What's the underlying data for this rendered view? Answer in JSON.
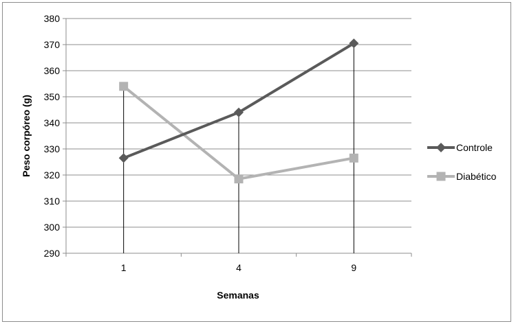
{
  "chart_data": {
    "type": "line",
    "title": "",
    "xlabel": "Semanas",
    "ylabel": "Peso corpóreo (g)",
    "categories": [
      "1",
      "4",
      "9"
    ],
    "ylim": [
      290,
      380
    ],
    "y_ticks": [
      290,
      300,
      310,
      320,
      330,
      340,
      350,
      360,
      370,
      380
    ],
    "grid": true,
    "legend_position": "right",
    "series": [
      {
        "name": "Controle",
        "values": [
          326.5,
          344,
          370.5
        ],
        "color": "#5a5a5a",
        "marker": "diamond"
      },
      {
        "name": "Diabético",
        "values": [
          354,
          318.5,
          326.5
        ],
        "color": "#b3b3b3",
        "marker": "square"
      }
    ],
    "error_bar_lows": [
      290,
      290,
      290
    ]
  }
}
